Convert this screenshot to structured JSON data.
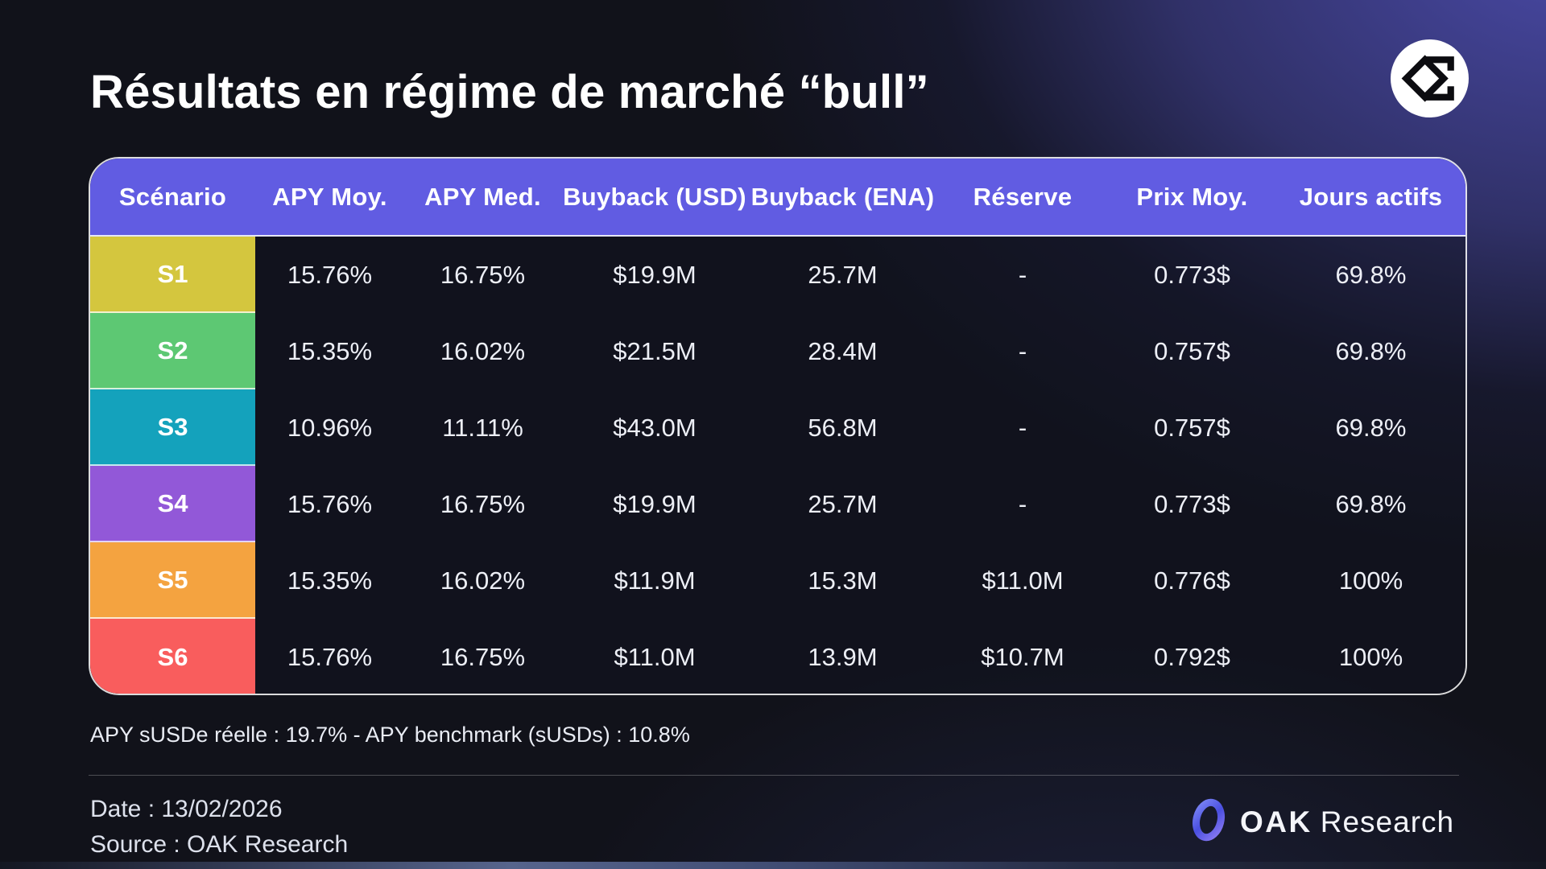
{
  "title": "Résultats en régime de marché “bull”",
  "header_logo": "ethena-sigma-icon",
  "table": {
    "header_bg": "#615ce2",
    "columns": [
      "Scénario",
      "APY Moy.",
      "APY Med.",
      "Buyback (USD)",
      "Buyback (ENA)",
      "Réserve",
      "Prix Moy.",
      "Jours actifs"
    ],
    "rows": [
      {
        "label": "S1",
        "color": "#d4c63e",
        "values": [
          "15.76%",
          "16.75%",
          "$19.9M",
          "25.7M",
          "-",
          "0.773$",
          "69.8%"
        ]
      },
      {
        "label": "S2",
        "color": "#5dc873",
        "values": [
          "15.35%",
          "16.02%",
          "$21.5M",
          "28.4M",
          "-",
          "0.757$",
          "69.8%"
        ]
      },
      {
        "label": "S3",
        "color": "#14a2bc",
        "values": [
          "10.96%",
          "11.11%",
          "$43.0M",
          "56.8M",
          "-",
          "0.757$",
          "69.8%"
        ]
      },
      {
        "label": "S4",
        "color": "#9258d8",
        "values": [
          "15.76%",
          "16.75%",
          "$19.9M",
          "25.7M",
          "-",
          "0.773$",
          "69.8%"
        ]
      },
      {
        "label": "S5",
        "color": "#f4a340",
        "values": [
          "15.35%",
          "16.02%",
          "$11.9M",
          "15.3M",
          "$11.0M",
          "0.776$",
          "100%"
        ]
      },
      {
        "label": "S6",
        "color": "#f95d5d",
        "values": [
          "15.76%",
          "16.75%",
          "$11.0M",
          "13.9M",
          "$10.7M",
          "0.792$",
          "100%"
        ]
      }
    ]
  },
  "footnote": "APY sUSDe réelle : 19.7% - APY benchmark (sUSDs) : 10.8%",
  "footer": {
    "date": "Date : 13/02/2026",
    "source": "Source : OAK Research",
    "brand_name": "OAK",
    "brand_suffix": "Research"
  },
  "chart_data": {
    "type": "table",
    "title": "Résultats en régime de marché “bull”",
    "columns": [
      "Scénario",
      "APY Moy.",
      "APY Med.",
      "Buyback (USD)",
      "Buyback (ENA)",
      "Réserve",
      "Prix Moy.",
      "Jours actifs"
    ],
    "rows": [
      [
        "S1",
        "15.76%",
        "16.75%",
        "$19.9M",
        "25.7M",
        "-",
        "0.773$",
        "69.8%"
      ],
      [
        "S2",
        "15.35%",
        "16.02%",
        "$21.5M",
        "28.4M",
        "-",
        "0.757$",
        "69.8%"
      ],
      [
        "S3",
        "10.96%",
        "11.11%",
        "$43.0M",
        "56.8M",
        "-",
        "0.757$",
        "69.8%"
      ],
      [
        "S4",
        "15.76%",
        "16.75%",
        "$19.9M",
        "25.7M",
        "-",
        "0.773$",
        "69.8%"
      ],
      [
        "S5",
        "15.35%",
        "16.02%",
        "$11.9M",
        "15.3M",
        "$11.0M",
        "0.776$",
        "100%"
      ],
      [
        "S6",
        "15.76%",
        "16.75%",
        "$11.0M",
        "13.9M",
        "$10.7M",
        "0.792$",
        "100%"
      ]
    ],
    "row_colors": [
      "#d4c63e",
      "#5dc873",
      "#14a2bc",
      "#9258d8",
      "#f4a340",
      "#f95d5d"
    ],
    "annotations": [
      "APY sUSDe réelle : 19.7% - APY benchmark (sUSDs) : 10.8%",
      "Date : 13/02/2026",
      "Source : OAK Research"
    ]
  }
}
